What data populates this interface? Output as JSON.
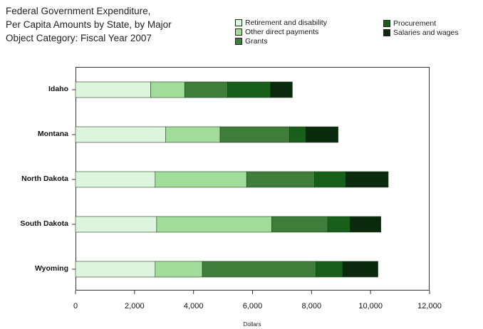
{
  "chart_data": {
    "type": "bar",
    "orientation": "horizontal",
    "stacked": true,
    "title_lines": [
      "Federal Government Expenditure,",
      "Per Capita Amounts by State, by Major",
      "Object Category: Fiscal Year 2007"
    ],
    "xlabel": "Dollars",
    "ylabel": "",
    "xlim": [
      0,
      12000
    ],
    "xticks": [
      0,
      2000,
      4000,
      6000,
      8000,
      10000,
      12000
    ],
    "xtick_labels": [
      "0",
      "2,000",
      "4,000",
      "6,000",
      "8,000",
      "10,000",
      "12,000"
    ],
    "grid": false,
    "legend_position": "top-right",
    "categories": [
      "Idaho",
      "Montana",
      "North Dakota",
      "South Dakota",
      "Wyoming"
    ],
    "series": [
      {
        "name": "Retirement and disability",
        "color": "#ddf5dd",
        "values": [
          2550,
          3050,
          2700,
          2750,
          2700
        ]
      },
      {
        "name": "Other direct payments",
        "color": "#a2dc9a",
        "values": [
          1150,
          1850,
          3100,
          3900,
          1600
        ]
      },
      {
        "name": "Grants",
        "color": "#3e7d3a",
        "values": [
          1450,
          2350,
          2300,
          1900,
          3850
        ]
      },
      {
        "name": "Procurement",
        "color": "#175f1b",
        "values": [
          1450,
          550,
          1050,
          750,
          900
        ]
      },
      {
        "name": "Salaries and wages",
        "color": "#0b2a0d",
        "values": [
          750,
          1100,
          1450,
          1050,
          1200
        ]
      }
    ],
    "legend_order": [
      "Retirement and disability",
      "Procurement",
      "Other direct payments",
      "Salaries and wages",
      "Grants"
    ]
  }
}
